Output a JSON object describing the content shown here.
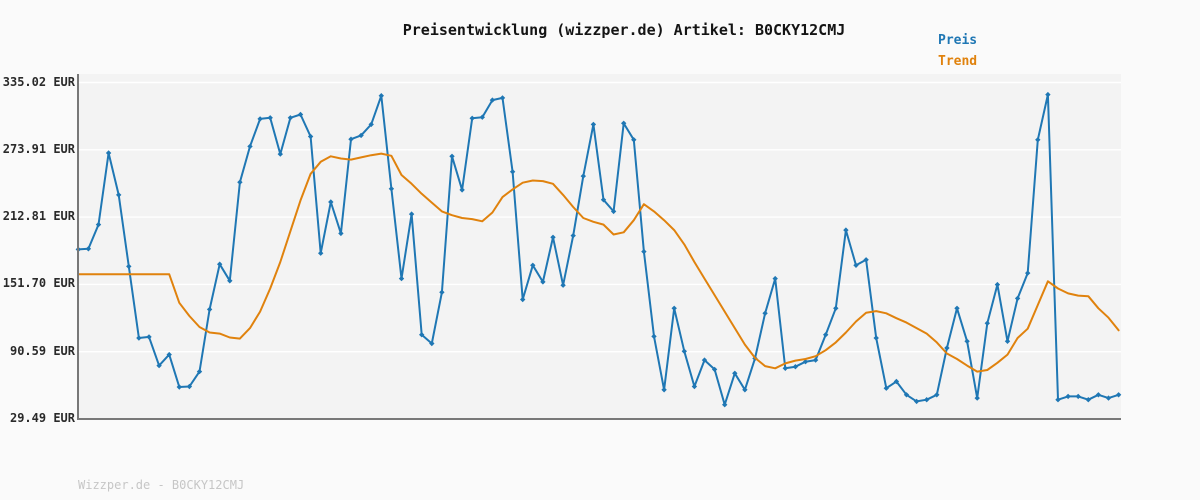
{
  "header": {
    "title": "Preisentwicklung (wizzper.de) Artikel: B0CKY12CMJ"
  },
  "footer": {
    "text": "Wizzper.de - B0CKY12CMJ"
  },
  "colors": {
    "preis": "#1f77b4",
    "trend": "#e0820d",
    "grid": "#ffffff",
    "plot_background": "#f3f3f3",
    "figure_background": "#fafafa",
    "spine": "#787878",
    "tick_label": "#2a2a2a",
    "watermark": "#c6c6c6"
  },
  "chart_data": {
    "type": "line",
    "title": "Preisentwicklung (wizzper.de) Artikel: B0CKY12CMJ",
    "xlabel": "",
    "ylabel": "",
    "x_axis_labels_visible": false,
    "grid": "horizontal",
    "legend_position": "top-right",
    "ylim": [
      29.49,
      335.02
    ],
    "yticks": [
      {
        "label": "335.02 EUR",
        "value": 335.02
      },
      {
        "label": "273.91 EUR",
        "value": 273.91
      },
      {
        "label": "212.81 EUR",
        "value": 212.81
      },
      {
        "label": "151.70 EUR",
        "value": 151.7
      },
      {
        "label": "90.59 EUR",
        "value": 90.59
      },
      {
        "label": "29.49 EUR",
        "value": 29.49
      }
    ],
    "currency": "EUR",
    "series": [
      {
        "name": "Preis",
        "color": "#1f77b4",
        "marker": "diamond",
        "line_width": 2,
        "values": [
          183.5,
          184,
          206,
          271,
          233,
          168,
          103,
          104,
          78,
          88,
          58.5,
          59,
          72.5,
          129,
          170,
          155,
          244.5,
          277,
          302,
          303,
          270,
          303,
          306,
          286,
          180,
          226.5,
          198,
          283.5,
          287,
          297,
          323,
          238.5,
          157,
          215.5,
          106,
          98,
          144.5,
          268,
          237.5,
          302.5,
          303.5,
          319,
          321,
          254,
          138,
          169,
          154,
          194.5,
          151,
          196,
          250,
          297,
          228.5,
          218,
          298,
          283,
          181.5,
          104.5,
          56,
          130,
          91,
          59,
          83,
          74.5,
          42.5,
          71,
          56,
          84.5,
          125.5,
          157,
          75.5,
          77,
          81.5,
          83,
          106,
          130,
          201,
          169,
          174,
          103,
          57.5,
          63.5,
          51.5,
          45.5,
          47,
          51.5,
          94,
          130,
          100,
          48.5,
          116.5,
          151.5,
          100,
          139,
          162,
          283,
          324,
          47,
          50,
          50,
          47,
          51.5,
          48.5,
          51.5
        ]
      },
      {
        "name": "Trend",
        "color": "#e0820d",
        "marker": "none",
        "line_width": 2,
        "values": [
          161,
          161,
          161,
          161,
          161,
          161,
          161,
          161,
          161,
          161,
          135,
          123,
          113,
          108,
          107,
          103.5,
          102.5,
          112,
          127,
          148,
          172,
          200,
          228,
          252,
          263,
          268,
          266,
          265,
          267,
          269,
          270.5,
          268.5,
          251,
          243,
          234,
          226,
          218,
          214.5,
          212,
          211,
          209,
          217,
          231,
          238,
          244,
          246,
          245.5,
          243,
          233,
          222,
          212,
          208.5,
          206,
          197,
          199,
          210,
          224.5,
          218,
          210,
          201,
          188,
          172,
          157,
          142,
          127,
          112,
          97,
          85,
          77.5,
          75.5,
          80,
          82.5,
          84,
          86.5,
          92,
          99,
          108,
          118,
          126,
          127.5,
          125.5,
          121,
          117,
          112,
          107,
          99,
          89,
          84,
          78,
          72.5,
          74,
          80.5,
          88,
          103,
          111.5,
          133,
          154.5,
          148,
          143.5,
          141.5,
          141,
          130,
          121.5,
          110
        ]
      }
    ]
  }
}
